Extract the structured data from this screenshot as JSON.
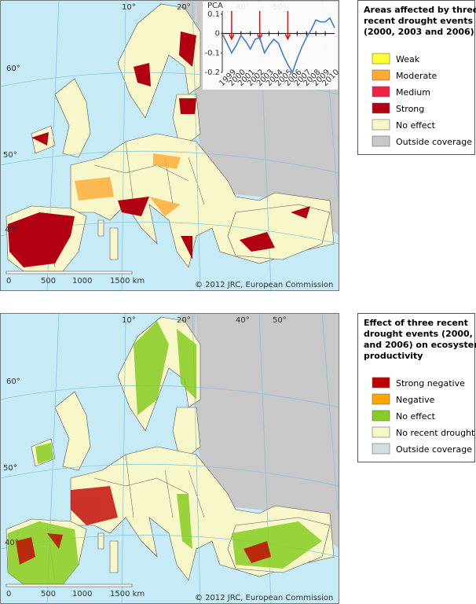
{
  "maps": [
    {
      "legend": {
        "title": "Areas affected by three recent drought events (2000, 2003 and 2006)",
        "items": [
          {
            "label": "Weak",
            "color": "#ffff33"
          },
          {
            "label": "Moderate",
            "color": "#ffaa33"
          },
          {
            "label": "Medium",
            "color": "#ee2244"
          },
          {
            "label": "Strong",
            "color": "#b20012"
          },
          {
            "label": "No effect",
            "color": "#f7f7c9"
          },
          {
            "label": "Outside coverage",
            "color": "#c8c8c8"
          }
        ]
      },
      "copyright": "© 2012 JRC, European Commission",
      "scale": [
        "0",
        "500",
        "1000",
        "1500 km"
      ],
      "lat_labels": [
        "60°",
        "50°",
        "40°"
      ],
      "lon_labels": [
        "10°",
        "20°",
        "40°",
        "50°"
      ]
    },
    {
      "legend": {
        "title": "Effect of three recent drought events (2000, 2003 and 2006) on ecosystem productivity",
        "items": [
          {
            "label": "Strong negative",
            "color": "#c00000"
          },
          {
            "label": "Negative",
            "color": "#ffa500"
          },
          {
            "label": "No effect",
            "color": "#88cc22"
          },
          {
            "label": "No recent drought",
            "color": "#f7f7c9"
          },
          {
            "label": "Outside coverage",
            "color": "#d4dee2"
          }
        ]
      },
      "copyright": "© 2012 JRC, European Commission",
      "scale": [
        "0",
        "500",
        "1000",
        "1500 km"
      ],
      "lat_labels": [
        "60°",
        "50°",
        "40°"
      ],
      "lon_labels": [
        "10°",
        "20°",
        "40°",
        "50°"
      ]
    }
  ],
  "inset": {
    "type": "line",
    "y_label": "PCA",
    "color": "#3a7fd5",
    "ylim": [
      -0.2,
      0.1
    ],
    "yticks": [
      0.1,
      0,
      -0.1,
      -0.2
    ],
    "xlim": [
      1999,
      2011
    ],
    "xticks": [
      1999,
      2000,
      2001,
      2002,
      2003,
      2004,
      2005,
      2006,
      2007,
      2008,
      2009,
      2010
    ],
    "events": [
      2000,
      2003,
      2006
    ],
    "x": [
      1999,
      1999.5,
      2000,
      2000.5,
      2001,
      2001.5,
      2002,
      2002.5,
      2003,
      2003.5,
      2004,
      2004.5,
      2005,
      2005.5,
      2006,
      2006.5,
      2007,
      2007.5,
      2008,
      2008.5,
      2009,
      2009.5,
      2010,
      2010.5,
      2011
    ],
    "values": [
      0.0,
      -0.05,
      -0.1,
      -0.06,
      -0.01,
      -0.04,
      -0.08,
      -0.03,
      -0.02,
      -0.1,
      -0.06,
      -0.03,
      -0.05,
      -0.11,
      -0.16,
      -0.2,
      -0.13,
      -0.07,
      -0.02,
      0.02,
      0.07,
      0.06,
      0.06,
      0.08,
      0.03
    ]
  }
}
